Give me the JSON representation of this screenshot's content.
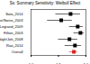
{
  "chart_data": {
    "type": "scatter",
    "title": "Ss: Summary Sensitivity: Weibull Effect",
    "categories": [
      "Sato_2014",
      "Lane/Swiss_2003",
      "Legrand_2009",
      "Fillion_2003",
      "Nigh/Joh_2008",
      "Rao_2014",
      "Overall"
    ],
    "values": [
      0.72,
      0.55,
      0.85,
      0.9,
      0.7,
      0.8,
      0.78
    ],
    "lower": [
      0.45,
      0.3,
      0.7,
      0.78,
      0.5,
      0.62,
      0.7
    ],
    "upper": [
      0.9,
      0.75,
      0.95,
      0.97,
      0.85,
      0.92,
      0.85
    ],
    "colors": [
      "#000000",
      "#000000",
      "#000000",
      "#000000",
      "#000000",
      "#000000",
      "#d62728"
    ],
    "marker": "square",
    "xlim": [
      0,
      1
    ],
    "xticks": [
      0,
      0.5,
      1
    ],
    "grid": false
  }
}
